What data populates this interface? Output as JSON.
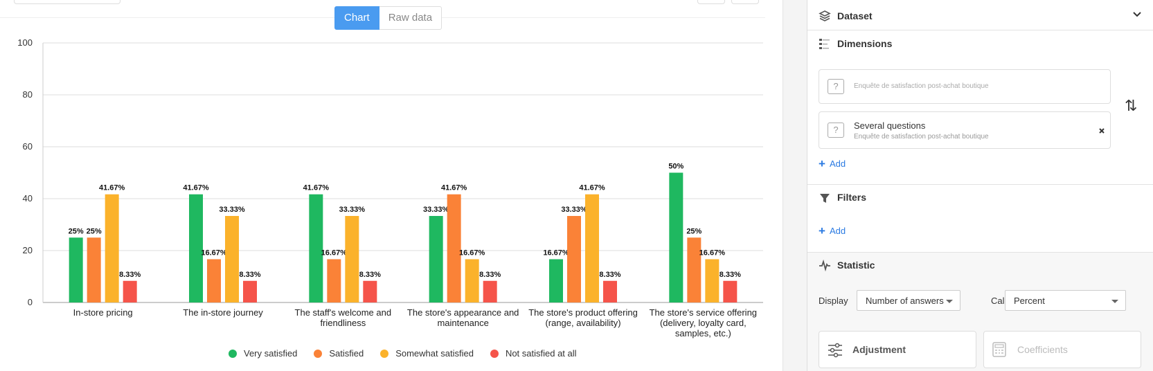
{
  "toggle": {
    "chart_label": "Chart",
    "raw_label": "Raw data"
  },
  "chart_data": {
    "type": "bar",
    "categories": [
      [
        "In-store pricing"
      ],
      [
        "The in-store journey"
      ],
      [
        "The staff's welcome and",
        "friendliness"
      ],
      [
        "The store's appearance and",
        "maintenance"
      ],
      [
        "The store's product offering",
        "(range, availability)"
      ],
      [
        "The store's service offering",
        "(delivery, loyalty card,",
        "samples, etc.)"
      ]
    ],
    "series": [
      {
        "name": "Very satisfied",
        "color": "#1fb860",
        "values": [
          25,
          41.67,
          41.67,
          33.33,
          16.67,
          50
        ]
      },
      {
        "name": "Satisfied",
        "color": "#fa8237",
        "values": [
          25,
          16.67,
          16.67,
          41.67,
          33.33,
          25
        ]
      },
      {
        "name": "Somewhat satisfied",
        "color": "#fbb22b",
        "values": [
          41.67,
          33.33,
          33.33,
          16.67,
          41.67,
          16.67
        ]
      },
      {
        "name": "Not satisfied at all",
        "color": "#f5544a",
        "values": [
          8.33,
          8.33,
          8.33,
          8.33,
          8.33,
          8.33
        ]
      }
    ],
    "data_labels": [
      [
        "25%",
        "25%",
        "41.67%",
        "8.33%"
      ],
      [
        "41.67%",
        "16.67%",
        "33.33%",
        "8.33%"
      ],
      [
        "41.67%",
        "16.67%",
        "33.33%",
        "8.33%"
      ],
      [
        "33.33%",
        "41.67%",
        "16.67%",
        "8.33%"
      ],
      [
        "16.67%",
        "33.33%",
        "41.67%",
        "8.33%"
      ],
      [
        "50%",
        "25%",
        "16.67%",
        "8.33%"
      ]
    ],
    "yticks": [
      "0",
      "20",
      "40",
      "60",
      "80",
      "100"
    ],
    "ylim": [
      0,
      100
    ],
    "grid": true,
    "legend_position": "bottom"
  },
  "panel": {
    "dataset": {
      "title": "Dataset"
    },
    "dimensions": {
      "title": "Dimensions",
      "box1_sub": "Enquête de satisfaction post-achat boutique",
      "box2_title": "Several questions",
      "box2_sub": "Enquête de satisfaction post-achat boutique",
      "add_label": "Add",
      "swap_icon": "⇅"
    },
    "filters": {
      "title": "Filters",
      "add_label": "Add"
    },
    "statistic": {
      "title": "Statistic",
      "display_label": "Display",
      "display_value": "Number of answers",
      "calcul_label": "Calcul",
      "calcul_value": "Percent",
      "adjustment_label": "Adjustment",
      "coefficients_label": "Coefficients"
    }
  }
}
